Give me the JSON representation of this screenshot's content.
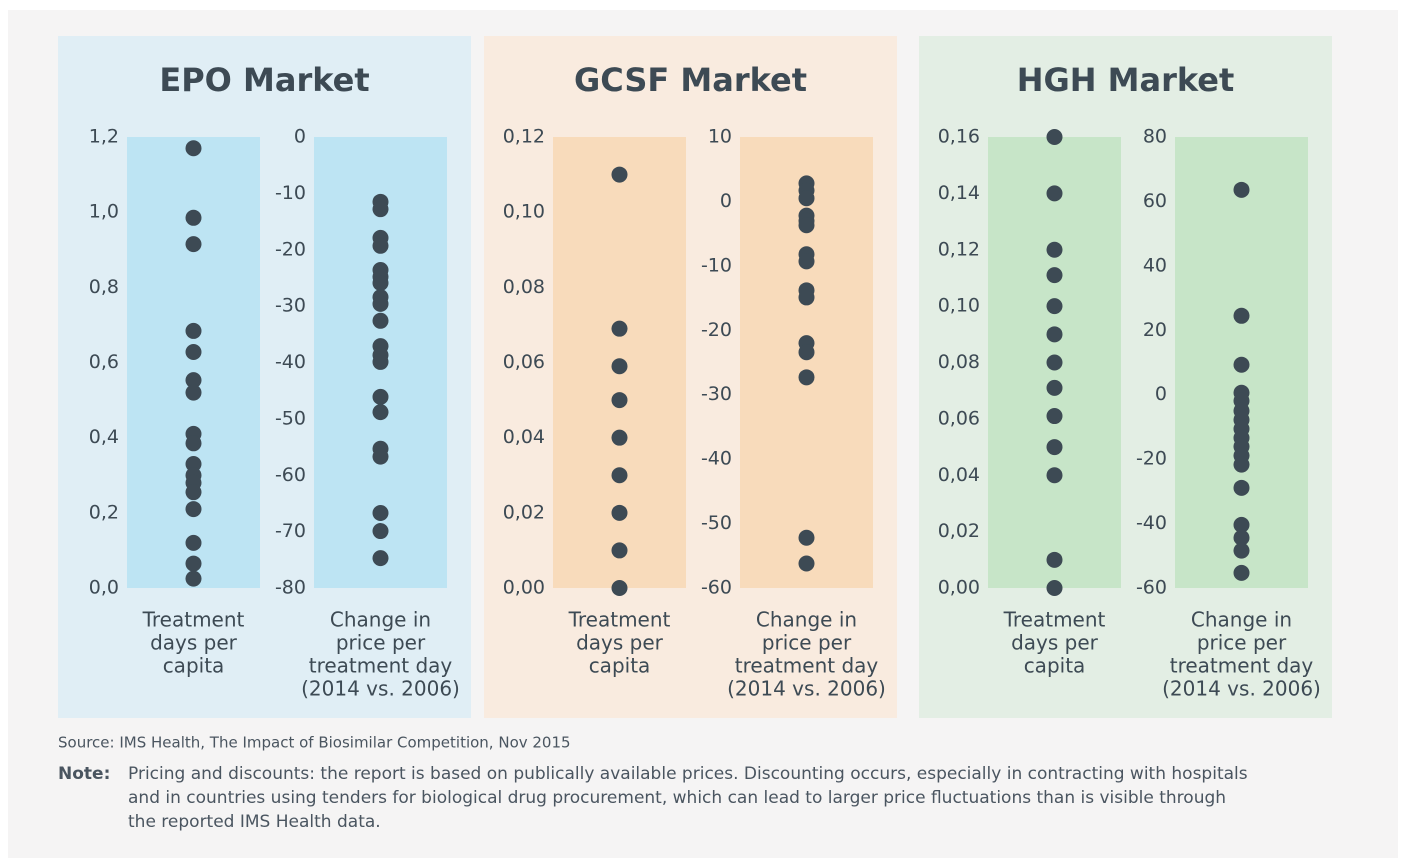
{
  "panels": [
    {
      "title": "EPO Market",
      "background": "#e0eef5",
      "plot_background": "#bde4f3",
      "charts": [
        {
          "type": "strip",
          "color": "#3d4a54",
          "x_label": [
            "Treatment",
            "days per",
            "capita"
          ],
          "values": [
            1.17,
            0.985,
            0.915,
            0.684,
            0.628,
            0.553,
            0.52,
            0.41,
            0.385,
            0.33,
            0.3,
            0.28,
            0.255,
            0.21,
            0.12,
            0.065,
            0.025
          ],
          "ylim": [
            0,
            1.2
          ],
          "yticks": [
            {
              "value": 0,
              "label": "0,0"
            },
            {
              "value": 0.2,
              "label": "0,2"
            },
            {
              "value": 0.4,
              "label": "0,4"
            },
            {
              "value": 0.6,
              "label": "0,6"
            },
            {
              "value": 0.8,
              "label": "0,8"
            },
            {
              "value": 1.0,
              "label": "1,0"
            },
            {
              "value": 1.2,
              "label": "1,2"
            }
          ]
        },
        {
          "type": "strip",
          "color": "#3d4a54",
          "x_label": [
            "Change in",
            "price per",
            "treatment day",
            "(2014 vs. 2006)"
          ],
          "values": [
            -11.5,
            -12.8,
            -17.9,
            -19.3,
            -23.6,
            -24.8,
            -25.9,
            -28.4,
            -29.6,
            -32.6,
            -37.1,
            -38.7,
            -39.9,
            -46.1,
            -48.8,
            -55.3,
            -56.7,
            -66.7,
            -69.9,
            -74.7
          ],
          "ylim": [
            -80,
            0
          ],
          "yticks": [
            -80,
            -70,
            -60,
            -50,
            -40,
            -30,
            -20,
            -10,
            0
          ]
        }
      ]
    },
    {
      "title": "GCSF Market",
      "background": "#f9ebdf",
      "plot_background": "#f8dbbb",
      "charts": [
        {
          "type": "strip",
          "color": "#3d4a54",
          "x_label": [
            "Treatment",
            "days per",
            "capita"
          ],
          "values": [
            0.11,
            0.069,
            0.059,
            0.05,
            0.04,
            0.03,
            0.02,
            0.01,
            0
          ],
          "ylim": [
            0,
            0.12
          ],
          "yticks": [
            {
              "value": 0,
              "label": "0,00"
            },
            {
              "value": 0.02,
              "label": "0,02"
            },
            {
              "value": 0.04,
              "label": "0,04"
            },
            {
              "value": 0.06,
              "label": "0,06"
            },
            {
              "value": 0.08,
              "label": "0,08"
            },
            {
              "value": 0.1,
              "label": "0,10"
            },
            {
              "value": 0.12,
              "label": "0,12"
            }
          ]
        },
        {
          "type": "strip",
          "color": "#3d4a54",
          "x_label": [
            "Change in",
            "price per",
            "treatment day",
            "(2014 vs. 2006)"
          ],
          "values": [
            2.8,
            1.7,
            0.5,
            -2.2,
            -3.0,
            -3.7,
            -8.2,
            -9.3,
            -13.8,
            -14.9,
            -22.0,
            -23.4,
            -27.3,
            -52.2,
            -56.2
          ],
          "ylim": [
            -60,
            10
          ],
          "yticks": [
            -60,
            -50,
            -40,
            -30,
            -20,
            -10,
            0,
            10
          ]
        }
      ]
    },
    {
      "title": "HGH Market",
      "background": "#e3eee4",
      "plot_background": "#c7e5c8",
      "charts": [
        {
          "type": "strip",
          "color": "#3d4a54",
          "x_label": [
            "Treatment",
            "days per",
            "capita"
          ],
          "values": [
            0.16,
            0.14,
            0.12,
            0.111,
            0.1,
            0.09,
            0.08,
            0.071,
            0.061,
            0.05,
            0.04,
            0.01,
            0
          ],
          "ylim": [
            0,
            0.16
          ],
          "yticks": [
            {
              "value": 0,
              "label": "0,00"
            },
            {
              "value": 0.02,
              "label": "0,02"
            },
            {
              "value": 0.04,
              "label": "0,04"
            },
            {
              "value": 0.06,
              "label": "0,06"
            },
            {
              "value": 0.08,
              "label": "0,08"
            },
            {
              "value": 0.1,
              "label": "0,10"
            },
            {
              "value": 0.12,
              "label": "0,12"
            },
            {
              "value": 0.14,
              "label": "0,14"
            },
            {
              "value": 0.16,
              "label": "0,16"
            }
          ]
        },
        {
          "type": "strip",
          "color": "#3d4a54",
          "x_label": [
            "Change in",
            "price per",
            "treatment day",
            "(2014 vs. 2006)"
          ],
          "values": [
            63.6,
            24.5,
            9.3,
            0.6,
            -1.9,
            -5.0,
            -7.8,
            -10.6,
            -13.4,
            -16.1,
            -18.9,
            -21.7,
            -28.9,
            -40.4,
            -44.4,
            -48.4,
            -55.3
          ],
          "ylim": [
            -60,
            80
          ],
          "yticks": [
            -60,
            -40,
            -20,
            0,
            20,
            40,
            60,
            80
          ]
        }
      ]
    }
  ],
  "source": "Source: IMS Health, The Impact of Biosimilar Competition, Nov 2015",
  "note": {
    "label": "Note:",
    "lines": [
      "Pricing and discounts: the report is based on publically available prices. Discounting occurs, especially in contracting with hospitals",
      "and in countries using tenders for biological drug procurement, which can lead to larger price fluctuations than is visible through",
      "the reported IMS Health data."
    ]
  }
}
